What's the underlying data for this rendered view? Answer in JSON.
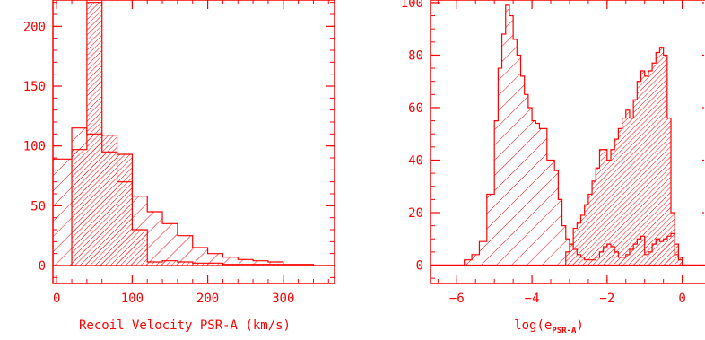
{
  "colors": {
    "ink": "#ff0000"
  },
  "chart_data": [
    {
      "type": "bar",
      "subtype": "overlaid histograms (step outlines with diagonal hatching)",
      "xlabel": "Recoil Velocity PSR-A (km/s)",
      "ylabel": "",
      "xlim": [
        -5,
        368
      ],
      "ylim": [
        -15,
        222
      ],
      "xticks": [
        "0",
        "100",
        "200",
        "300"
      ],
      "yticks": [
        "0",
        "50",
        "100",
        "150",
        "200"
      ],
      "series": [
        {
          "hatch": "sparse, lines rising left to right",
          "bin_edges": [
            -5,
            20,
            40,
            60,
            80,
            100,
            120,
            140,
            160,
            180,
            200,
            220,
            240,
            260,
            280,
            300,
            320,
            340,
            368
          ],
          "values": [
            89,
            115,
            110,
            95,
            70,
            58,
            45,
            35,
            25,
            15,
            10,
            7,
            5,
            4,
            3,
            1,
            1,
            0
          ]
        },
        {
          "hatch": "dense, lines rising left to right",
          "bin_edges": [
            20,
            40,
            60,
            80,
            100,
            120,
            140,
            160,
            180,
            200,
            220,
            240,
            260,
            280,
            300,
            320,
            340
          ],
          "values": [
            97,
            220,
            109,
            93,
            30,
            3,
            4,
            3,
            2,
            2,
            1,
            1,
            1,
            1,
            0,
            0
          ]
        }
      ]
    },
    {
      "type": "bar",
      "subtype": "overlaid histograms (step outlines with diagonal hatching)",
      "xlabel_prefix": "log(e",
      "xlabel_sub": "PSR-A",
      "xlabel_suffix": ")",
      "ylabel": "",
      "xlim": [
        -6.7,
        0.75
      ],
      "ylim": [
        -7,
        101
      ],
      "xticks": [
        "−6",
        "−4",
        "−2",
        "0"
      ],
      "yticks": [
        "0",
        "20",
        "40",
        "60",
        "80",
        "100"
      ],
      "series": [
        {
          "hatch": "sparse, lines rising left to right",
          "bin_edges": [
            -6.7,
            -5.8,
            -5.6,
            -5.4,
            -5.2,
            -5.0,
            -4.9,
            -4.8,
            -4.7,
            -4.6,
            -4.5,
            -4.4,
            -4.3,
            -4.2,
            -4.1,
            -4.0,
            -3.9,
            -3.8,
            -3.6,
            -3.4,
            -3.3,
            -3.2,
            -3.1,
            -3.0,
            -2.9,
            -2.8,
            -2.7,
            -2.6,
            -2.5,
            -2.4,
            -2.3,
            -2.2,
            -2.1,
            -2.0,
            -1.9,
            -1.8,
            -1.7,
            -1.6,
            -1.5,
            -1.4,
            -1.3,
            -1.2,
            -1.1,
            -1.0,
            -0.9,
            -0.8,
            -0.7,
            -0.6,
            -0.5,
            -0.4,
            -0.3,
            -0.2,
            -0.1,
            0.0,
            0.75
          ],
          "values": [
            0,
            2,
            4,
            9,
            27,
            55,
            75,
            88,
            99,
            95,
            86,
            80,
            72,
            65,
            60,
            55,
            54,
            52,
            40,
            36,
            25,
            15,
            10,
            8,
            6,
            4,
            3,
            2,
            2,
            2,
            3,
            5,
            7,
            8,
            7,
            5,
            3,
            3,
            4,
            6,
            8,
            10,
            11,
            4,
            5,
            8,
            10,
            9,
            10,
            11,
            12,
            4,
            2,
            0
          ]
        },
        {
          "hatch": "dense, lines rising left to right",
          "bin_edges": [
            -3.1,
            -3.0,
            -2.9,
            -2.8,
            -2.7,
            -2.6,
            -2.5,
            -2.4,
            -2.3,
            -2.2,
            -2.1,
            -2.0,
            -1.9,
            -1.8,
            -1.7,
            -1.6,
            -1.5,
            -1.4,
            -1.3,
            -1.2,
            -1.1,
            -1.0,
            -0.9,
            -0.8,
            -0.7,
            -0.6,
            -0.5,
            -0.4,
            -0.3,
            -0.2,
            -0.1,
            0.0,
            0.1
          ],
          "values": [
            5,
            8,
            14,
            16,
            19,
            23,
            27,
            32,
            37,
            44,
            44,
            40,
            44,
            48,
            52,
            56,
            59,
            56,
            63,
            70,
            74,
            72,
            74,
            77,
            81,
            83,
            80,
            56,
            20,
            8,
            3,
            0
          ]
        }
      ]
    }
  ]
}
